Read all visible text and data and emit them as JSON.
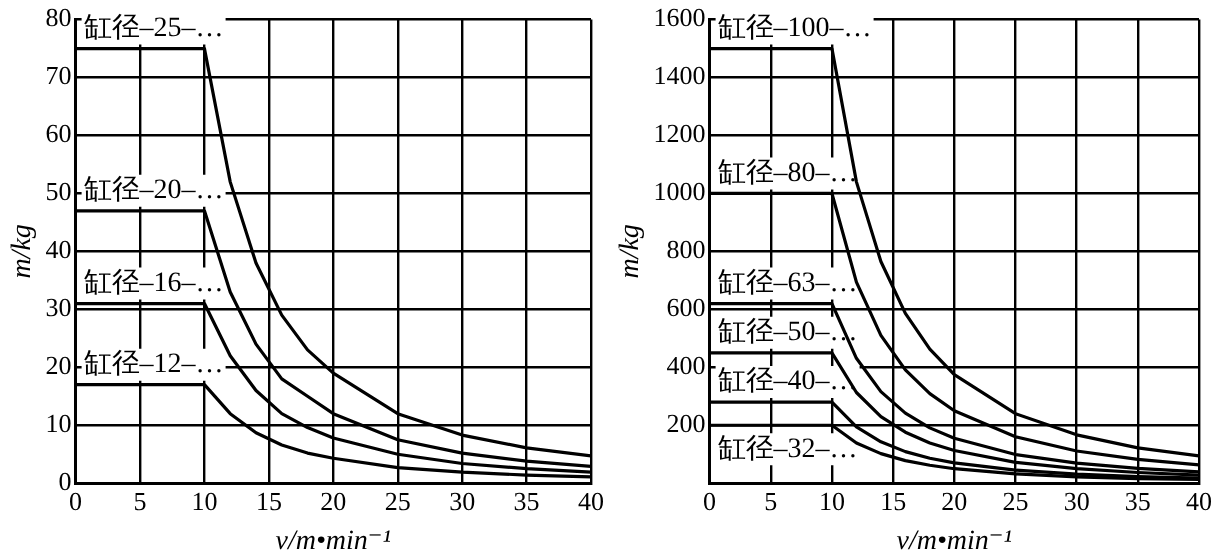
{
  "chart_data": [
    {
      "type": "line",
      "xlabel": "v/m•min⁻¹",
      "ylabel": "m/kg",
      "x": [
        0,
        10,
        12,
        14,
        16,
        18,
        20,
        25,
        30,
        35,
        40
      ],
      "xlim": [
        0,
        40
      ],
      "xticks": [
        0,
        5,
        10,
        15,
        20,
        25,
        30,
        35,
        40
      ],
      "ylim": [
        0,
        80
      ],
      "yticks": [
        0,
        10,
        20,
        30,
        40,
        50,
        60,
        70,
        80
      ],
      "grid": true,
      "legend": false,
      "marker": "none",
      "line_style": "solid",
      "series": [
        {
          "name": "缸径–25–…",
          "color": "#000000",
          "values": [
            75,
            75,
            52,
            38,
            29,
            23,
            19,
            12,
            8.3,
            6.1,
            4.7
          ]
        },
        {
          "name": "缸径–20–…",
          "color": "#000000",
          "values": [
            47,
            47,
            33,
            24,
            18,
            15,
            12,
            7.5,
            5.2,
            3.8,
            2.9
          ]
        },
        {
          "name": "缸径–16–…",
          "color": "#000000",
          "values": [
            31,
            31,
            22,
            16,
            12,
            9.6,
            7.8,
            5,
            3.4,
            2.5,
            1.9
          ]
        },
        {
          "name": "缸径–12–…",
          "color": "#000000",
          "values": [
            17,
            17,
            12,
            8.7,
            6.6,
            5.2,
            4.3,
            2.7,
            1.9,
            1.4,
            1.1
          ]
        }
      ]
    },
    {
      "type": "line",
      "xlabel": "v/m•min⁻¹",
      "ylabel": "m/kg",
      "x": [
        0,
        10,
        12,
        14,
        16,
        18,
        20,
        25,
        30,
        35,
        40
      ],
      "xlim": [
        0,
        40
      ],
      "xticks": [
        0,
        5,
        10,
        15,
        20,
        25,
        30,
        35,
        40
      ],
      "ylim": [
        0,
        1600
      ],
      "yticks": [
        {
          "value": 0,
          "label": null
        },
        200,
        400,
        600,
        800,
        1000,
        1200,
        1400,
        1600
      ],
      "grid": true,
      "legend": false,
      "marker": "none",
      "line_style": "solid",
      "series": [
        {
          "name": "缸径–100–…",
          "color": "#000000",
          "values": [
            1500,
            1500,
            1040,
            765,
            586,
            463,
            375,
            240,
            167,
            122,
            94
          ]
        },
        {
          "name": "缸径–80–…",
          "color": "#000000",
          "values": [
            1000,
            1000,
            694,
            510,
            391,
            309,
            250,
            160,
            111,
            82,
            63
          ]
        },
        {
          "name": "缸径–63–…",
          "color": "#000000",
          "values": [
            620,
            620,
            431,
            316,
            242,
            191,
            155,
            99,
            69,
            51,
            39
          ]
        },
        {
          "name": "缸径–50–…",
          "color": "#000000",
          "values": [
            450,
            450,
            313,
            230,
            176,
            139,
            113,
            72,
            50,
            37,
            28
          ]
        },
        {
          "name": "缸径–40–…",
          "color": "#000000",
          "values": [
            280,
            280,
            194,
            143,
            109,
            86,
            70,
            45,
            31,
            23,
            18
          ]
        },
        {
          "name": "缸径–32–…",
          "color": "#000000",
          "values": [
            200,
            200,
            139,
            102,
            78,
            62,
            50,
            32,
            22,
            16,
            13
          ]
        }
      ]
    }
  ]
}
